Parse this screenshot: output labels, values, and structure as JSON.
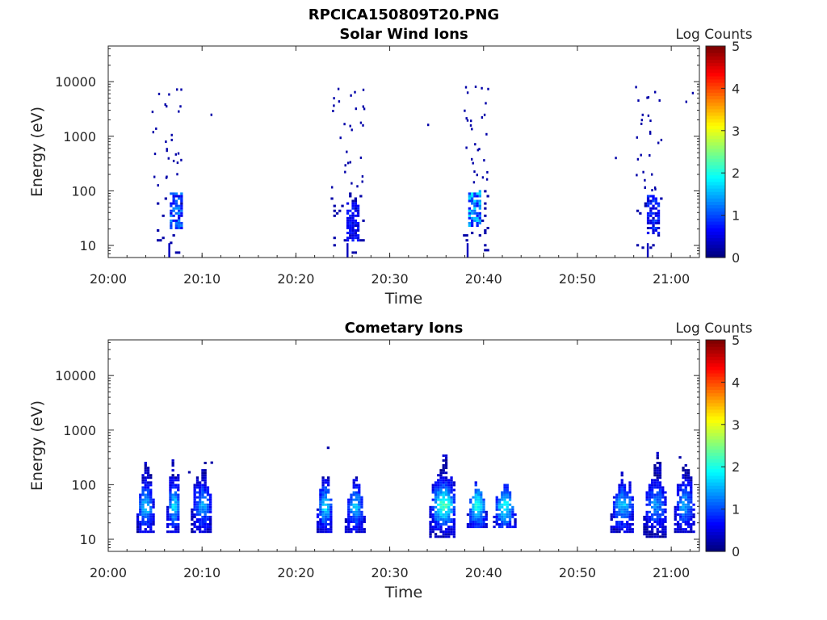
{
  "figure": {
    "title": "RPCICA150809T20.PNG"
  },
  "chart_data": [
    {
      "type": "heatmap",
      "title": "Solar Wind Ions",
      "xlabel": "Time",
      "ylabel": "Energy (eV)",
      "x_ticks": [
        "20:00",
        "20:10",
        "20:20",
        "20:30",
        "20:40",
        "20:50",
        "21:00"
      ],
      "xlim_minutes": [
        0,
        63
      ],
      "y_scale": "log",
      "y_ticks": [
        10,
        100,
        1000,
        10000
      ],
      "ylim": [
        6,
        45000
      ],
      "colorbar": {
        "label": "Log Counts",
        "range": [
          0,
          5
        ],
        "ticks": [
          0,
          1,
          2,
          3,
          4,
          5
        ],
        "colormap": "jet"
      },
      "clusters": [
        {
          "t0": 4.6,
          "t1": 7.8,
          "low_level": 1.0,
          "core_t": 7.0,
          "core_e": 40,
          "sparse_high": true
        },
        {
          "t0": 23.7,
          "t1": 27.2,
          "low_level": 0.6,
          "core_t": 26.0,
          "core_e": 25,
          "sparse_high": true
        },
        {
          "t0": 37.8,
          "t1": 40.4,
          "low_level": 1.3,
          "core_t": 38.8,
          "core_e": 45,
          "sparse_high": true
        },
        {
          "t0": 56.0,
          "t1": 59.0,
          "low_level": 0.7,
          "core_t": 58.0,
          "core_e": 35,
          "sparse_high": true
        }
      ]
    },
    {
      "type": "heatmap",
      "title": "Cometary Ions",
      "xlabel": "Time",
      "ylabel": "Energy (eV)",
      "x_ticks": [
        "20:00",
        "20:10",
        "20:20",
        "20:30",
        "20:40",
        "20:50",
        "21:00"
      ],
      "xlim_minutes": [
        0,
        63
      ],
      "y_scale": "log",
      "y_ticks": [
        10,
        100,
        1000,
        10000
      ],
      "ylim": [
        6,
        45000
      ],
      "colorbar": {
        "label": "Log Counts",
        "range": [
          0,
          5
        ],
        "ticks": [
          0,
          1,
          2,
          3,
          4,
          5
        ],
        "colormap": "jet"
      },
      "clusters": [
        {
          "t0": 3.0,
          "t1": 4.8,
          "e_min": 12,
          "e_max": 200,
          "peak": 1.7,
          "peak_e": 38
        },
        {
          "t0": 6.2,
          "t1": 7.6,
          "e_min": 12,
          "e_max": 220,
          "peak": 1.8,
          "peak_e": 40
        },
        {
          "t0": 8.8,
          "t1": 11.0,
          "e_min": 12,
          "e_max": 180,
          "peak": 1.4,
          "peak_e": 40
        },
        {
          "t0": 22.2,
          "t1": 23.8,
          "e_min": 12,
          "e_max": 160,
          "peak": 1.8,
          "peak_e": 38
        },
        {
          "t0": 25.2,
          "t1": 27.2,
          "e_min": 12,
          "e_max": 100,
          "peak": 1.6,
          "peak_e": 38
        },
        {
          "t0": 34.2,
          "t1": 37.0,
          "e_min": 10,
          "e_max": 300,
          "peak": 2.3,
          "peak_e": 40
        },
        {
          "t0": 38.2,
          "t1": 40.2,
          "e_min": 15,
          "e_max": 90,
          "peak": 2.1,
          "peak_e": 40
        },
        {
          "t0": 41.0,
          "t1": 43.3,
          "e_min": 15,
          "e_max": 90,
          "peak": 2.0,
          "peak_e": 38
        },
        {
          "t0": 53.5,
          "t1": 56.0,
          "e_min": 12,
          "e_max": 140,
          "peak": 1.6,
          "peak_e": 40
        },
        {
          "t0": 57.0,
          "t1": 59.5,
          "e_min": 10,
          "e_max": 250,
          "peak": 1.4,
          "peak_e": 40
        },
        {
          "t0": 60.3,
          "t1": 62.3,
          "e_min": 12,
          "e_max": 250,
          "peak": 1.5,
          "peak_e": 40
        }
      ]
    }
  ]
}
